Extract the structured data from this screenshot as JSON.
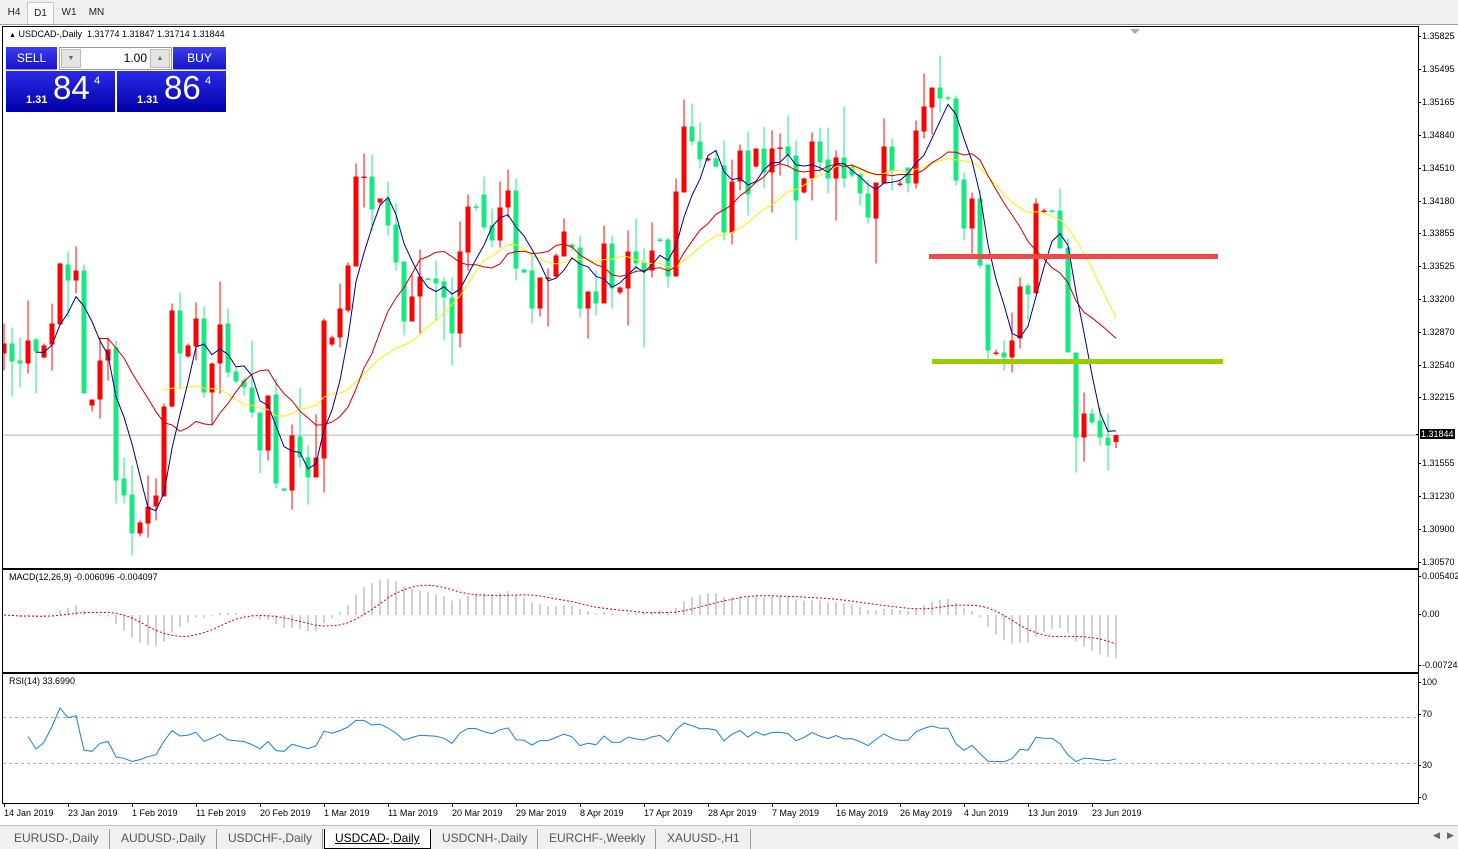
{
  "timeframes": [
    "H4",
    "D1",
    "W1",
    "MN"
  ],
  "active_timeframe": "D1",
  "chart_header": {
    "symbol": "USDCAD-,Daily",
    "ohlc_text": "1.31774 1.31847 1.31714 1.31844"
  },
  "trade_panel": {
    "sell_label": "SELL",
    "buy_label": "BUY",
    "lot": "1.00",
    "sell_price": {
      "prefix": "1.31",
      "big": "84",
      "sup": "4"
    },
    "buy_price": {
      "prefix": "1.31",
      "big": "86",
      "sup": "4"
    }
  },
  "price_axis": {
    "ticks": [
      "1.35825",
      "1.35495",
      "1.35165",
      "1.34840",
      "1.34510",
      "1.34180",
      "1.33855",
      "1.33525",
      "1.33200",
      "1.32870",
      "1.32540",
      "1.32215",
      "1.31555",
      "1.31230",
      "1.30900",
      "1.30570"
    ],
    "current_price": "1.31844"
  },
  "macd": {
    "label": "MACD(12,26,9) -0.006096 -0.004097",
    "ticks": [
      "0.005402",
      "0.00",
      "-0.00724"
    ]
  },
  "rsi": {
    "label": "RSI(14) 33.6990",
    "ticks": [
      "100",
      "70",
      "30",
      "0"
    ]
  },
  "date_labels": [
    "14 Jan 2019",
    "23 Jan 2019",
    "1 Feb 2019",
    "11 Feb 2019",
    "20 Feb 2019",
    "1 Mar 2019",
    "11 Mar 2019",
    "20 Mar 2019",
    "29 Mar 2019",
    "8 Apr 2019",
    "17 Apr 2019",
    "28 Apr 2019",
    "7 May 2019",
    "16 May 2019",
    "26 May 2019",
    "4 Jun 2019",
    "13 Jun 2019",
    "23 Jun 2019"
  ],
  "symbol_tabs": [
    "EURUSD-,Daily",
    "AUDUSD-,Daily",
    "USDCHF-,Daily",
    "USDCAD-,Daily",
    "USDCNH-,Daily",
    "EURCHF-,Weekly",
    "XAUUSD-,H1"
  ],
  "active_symbol_tab": "USDCAD-,Daily",
  "colors": {
    "bull": "#ff0000",
    "bear": "#19e882",
    "ma_fast": "#00008b",
    "ma_mid": "#cc0000",
    "ma_slow": "#ffee00",
    "resistance": "#f24848",
    "support": "#9acd00",
    "macd_hist": "#a0a0a0",
    "macd_signal": "#cc0000",
    "rsi": "#1e7fd0"
  },
  "chart_data": {
    "type": "candlestick",
    "title": "USDCAD-,Daily",
    "ylim": [
      1.3052,
      1.35905
    ],
    "horizontal_levels": {
      "resistance": 1.3363,
      "support": 1.3258
    },
    "ohlc": [
      [
        1.3266,
        1.3296,
        1.3249,
        1.3276
      ],
      [
        1.3276,
        1.3292,
        1.3223,
        1.3258
      ],
      [
        1.3259,
        1.3282,
        1.3232,
        1.3256
      ],
      [
        1.3256,
        1.3319,
        1.3246,
        1.3279
      ],
      [
        1.328,
        1.3282,
        1.3226,
        1.3268
      ],
      [
        1.3262,
        1.3276,
        1.3261,
        1.3274
      ],
      [
        1.3275,
        1.3316,
        1.3249,
        1.3296
      ],
      [
        1.3295,
        1.3357,
        1.3294,
        1.3356
      ],
      [
        1.3355,
        1.3368,
        1.3302,
        1.3339
      ],
      [
        1.3339,
        1.3373,
        1.3326,
        1.3349
      ],
      [
        1.3349,
        1.3355,
        1.3226,
        1.3226
      ],
      [
        1.3214,
        1.322,
        1.3208,
        1.322
      ],
      [
        1.322,
        1.3282,
        1.3201,
        1.3259
      ],
      [
        1.3259,
        1.3282,
        1.3239,
        1.327
      ],
      [
        1.3272,
        1.3279,
        1.3116,
        1.3139
      ],
      [
        1.3141,
        1.3162,
        1.3116,
        1.3124
      ],
      [
        1.3125,
        1.3154,
        1.3064,
        1.3086
      ],
      [
        1.3086,
        1.3099,
        1.3083,
        1.3097
      ],
      [
        1.3096,
        1.3144,
        1.3082,
        1.3113
      ],
      [
        1.3113,
        1.3141,
        1.3099,
        1.3124
      ],
      [
        1.3123,
        1.3216,
        1.3123,
        1.3213
      ],
      [
        1.3213,
        1.3316,
        1.3212,
        1.3309
      ],
      [
        1.3309,
        1.3327,
        1.323,
        1.3266
      ],
      [
        1.3263,
        1.3276,
        1.3262,
        1.3274
      ],
      [
        1.3273,
        1.3317,
        1.3259,
        1.3301
      ],
      [
        1.3301,
        1.3313,
        1.3222,
        1.3227
      ],
      [
        1.3227,
        1.3257,
        1.3194,
        1.3256
      ],
      [
        1.3256,
        1.3338,
        1.3226,
        1.3295
      ],
      [
        1.3296,
        1.3311,
        1.3242,
        1.3247
      ],
      [
        1.3248,
        1.3252,
        1.3236,
        1.3238
      ],
      [
        1.3239,
        1.3242,
        1.3224,
        1.3232
      ],
      [
        1.3232,
        1.3279,
        1.3202,
        1.3207
      ],
      [
        1.3207,
        1.3207,
        1.3146,
        1.3169
      ],
      [
        1.3169,
        1.3224,
        1.3159,
        1.3224
      ],
      [
        1.3225,
        1.3241,
        1.3131,
        1.3136
      ],
      [
        1.3131,
        1.3132,
        1.3128,
        1.3129
      ],
      [
        1.3129,
        1.3195,
        1.311,
        1.3184
      ],
      [
        1.3183,
        1.3232,
        1.3152,
        1.3162
      ],
      [
        1.3162,
        1.3174,
        1.3115,
        1.3142
      ],
      [
        1.3142,
        1.3205,
        1.3142,
        1.3162
      ],
      [
        1.3161,
        1.3301,
        1.3127,
        1.3299
      ],
      [
        1.3275,
        1.3284,
        1.3273,
        1.3282
      ],
      [
        1.3282,
        1.3336,
        1.3272,
        1.3311
      ],
      [
        1.3309,
        1.3357,
        1.3307,
        1.3354
      ],
      [
        1.3353,
        1.3456,
        1.3353,
        1.3443
      ],
      [
        1.3442,
        1.3466,
        1.3412,
        1.3443
      ],
      [
        1.3443,
        1.3465,
        1.3389,
        1.341
      ],
      [
        1.3417,
        1.3421,
        1.3414,
        1.3421
      ],
      [
        1.3421,
        1.3438,
        1.3384,
        1.3394
      ],
      [
        1.3395,
        1.3416,
        1.3349,
        1.3357
      ],
      [
        1.3358,
        1.3358,
        1.3284,
        1.3298
      ],
      [
        1.3298,
        1.3345,
        1.3298,
        1.3323
      ],
      [
        1.3323,
        1.337,
        1.3286,
        1.3343
      ],
      [
        1.3341,
        1.3342,
        1.3339,
        1.334
      ],
      [
        1.3341,
        1.3359,
        1.3299,
        1.3336
      ],
      [
        1.3338,
        1.3342,
        1.3279,
        1.3322
      ],
      [
        1.3322,
        1.3342,
        1.3254,
        1.3286
      ],
      [
        1.3286,
        1.3398,
        1.3272,
        1.3368
      ],
      [
        1.3367,
        1.3425,
        1.3349,
        1.3413
      ],
      [
        1.3413,
        1.3416,
        1.3409,
        1.3412
      ],
      [
        1.3425,
        1.3443,
        1.3389,
        1.3392
      ],
      [
        1.3394,
        1.3411,
        1.3372,
        1.3379
      ],
      [
        1.3379,
        1.3438,
        1.3372,
        1.3412
      ],
      [
        1.3412,
        1.345,
        1.3402,
        1.3429
      ],
      [
        1.3429,
        1.3441,
        1.3339,
        1.3351
      ],
      [
        1.335,
        1.3351,
        1.3346,
        1.3347
      ],
      [
        1.3349,
        1.3367,
        1.3296,
        1.3311
      ],
      [
        1.3311,
        1.3342,
        1.3303,
        1.3342
      ],
      [
        1.3341,
        1.3351,
        1.3293,
        1.3342
      ],
      [
        1.3343,
        1.3366,
        1.3341,
        1.3364
      ],
      [
        1.3363,
        1.3401,
        1.3363,
        1.3388
      ],
      [
        1.3375,
        1.3376,
        1.3369,
        1.3372
      ],
      [
        1.3372,
        1.3384,
        1.3302,
        1.3311
      ],
      [
        1.3311,
        1.3328,
        1.3281,
        1.3328
      ],
      [
        1.3328,
        1.3349,
        1.3304,
        1.3316
      ],
      [
        1.3316,
        1.3394,
        1.3316,
        1.3376
      ],
      [
        1.3376,
        1.3384,
        1.3311,
        1.3331
      ],
      [
        1.3327,
        1.3333,
        1.3325,
        1.3332
      ],
      [
        1.3331,
        1.3389,
        1.3294,
        1.3368
      ],
      [
        1.3368,
        1.3401,
        1.3347,
        1.3356
      ],
      [
        1.3357,
        1.3371,
        1.3272,
        1.3349
      ],
      [
        1.3349,
        1.3397,
        1.3342,
        1.3369
      ],
      [
        1.338,
        1.3382,
        1.3377,
        1.3379
      ],
      [
        1.338,
        1.3382,
        1.3332,
        1.3343
      ],
      [
        1.3343,
        1.3441,
        1.3343,
        1.3428
      ],
      [
        1.3427,
        1.352,
        1.3427,
        1.3493
      ],
      [
        1.3493,
        1.3516,
        1.3474,
        1.3478
      ],
      [
        1.3478,
        1.3497,
        1.3451,
        1.346
      ],
      [
        1.3459,
        1.3462,
        1.3458,
        1.3461
      ],
      [
        1.3461,
        1.3469,
        1.3452,
        1.3453
      ],
      [
        1.3454,
        1.3479,
        1.3379,
        1.3387
      ],
      [
        1.3387,
        1.346,
        1.3375,
        1.3438
      ],
      [
        1.3438,
        1.3475,
        1.3429,
        1.3469
      ],
      [
        1.3469,
        1.3488,
        1.3404,
        1.3425
      ],
      [
        1.3453,
        1.3471,
        1.3452,
        1.3471
      ],
      [
        1.3471,
        1.3493,
        1.3431,
        1.3447
      ],
      [
        1.3447,
        1.3489,
        1.3407,
        1.3471
      ],
      [
        1.3471,
        1.3486,
        1.3444,
        1.3472
      ],
      [
        1.3473,
        1.3504,
        1.3452,
        1.3464
      ],
      [
        1.3464,
        1.3479,
        1.3379,
        1.3419
      ],
      [
        1.3427,
        1.3442,
        1.3426,
        1.3441
      ],
      [
        1.3441,
        1.3487,
        1.3419,
        1.3478
      ],
      [
        1.3478,
        1.3492,
        1.3447,
        1.3457
      ],
      [
        1.346,
        1.3492,
        1.3426,
        1.3441
      ],
      [
        1.3441,
        1.3469,
        1.3399,
        1.3462
      ],
      [
        1.3462,
        1.3513,
        1.3432,
        1.3441
      ],
      [
        1.3453,
        1.3456,
        1.3442,
        1.3444
      ],
      [
        1.3445,
        1.3447,
        1.3414,
        1.3426
      ],
      [
        1.3426,
        1.3439,
        1.3396,
        1.3402
      ],
      [
        1.3401,
        1.3437,
        1.3356,
        1.3437
      ],
      [
        1.3436,
        1.3501,
        1.3436,
        1.3473
      ],
      [
        1.3473,
        1.3481,
        1.3429,
        1.3448
      ],
      [
        1.3435,
        1.3439,
        1.3433,
        1.3436
      ],
      [
        1.3452,
        1.3452,
        1.3427,
        1.3436
      ],
      [
        1.3436,
        1.3499,
        1.3431,
        1.3489
      ],
      [
        1.3488,
        1.3546,
        1.3481,
        1.3513
      ],
      [
        1.3512,
        1.3532,
        1.3485,
        1.3532
      ],
      [
        1.3532,
        1.3564,
        1.3507,
        1.3521
      ],
      [
        1.3522,
        1.3524,
        1.3519,
        1.3521
      ],
      [
        1.3521,
        1.3524,
        1.3434,
        1.3439
      ],
      [
        1.344,
        1.3447,
        1.3379,
        1.3391
      ],
      [
        1.3391,
        1.3427,
        1.3366,
        1.3421
      ],
      [
        1.3421,
        1.3429,
        1.3351,
        1.3354
      ],
      [
        1.3355,
        1.3355,
        1.3261,
        1.3269
      ],
      [
        1.3266,
        1.327,
        1.3264,
        1.3267
      ],
      [
        1.3267,
        1.3279,
        1.3249,
        1.3262
      ],
      [
        1.3262,
        1.3307,
        1.3247,
        1.3279
      ],
      [
        1.3281,
        1.3342,
        1.3271,
        1.3333
      ],
      [
        1.3334,
        1.3336,
        1.3299,
        1.3325
      ],
      [
        1.3326,
        1.3421,
        1.3326,
        1.3416
      ],
      [
        1.3408,
        1.3411,
        1.3406,
        1.3409
      ],
      [
        1.3409,
        1.341,
        1.3407,
        1.3408
      ],
      [
        1.3409,
        1.3431,
        1.3371,
        1.3371
      ],
      [
        1.3372,
        1.3381,
        1.3267,
        1.3267
      ],
      [
        1.3267,
        1.3267,
        1.3147,
        1.3182
      ],
      [
        1.3182,
        1.3227,
        1.3158,
        1.3206
      ],
      [
        1.3206,
        1.3211,
        1.3195,
        1.3197
      ],
      [
        1.3199,
        1.3212,
        1.3174,
        1.3182
      ],
      [
        1.3182,
        1.3206,
        1.3149,
        1.3174
      ],
      [
        1.31774,
        1.31847,
        1.31714,
        1.31844
      ]
    ]
  }
}
